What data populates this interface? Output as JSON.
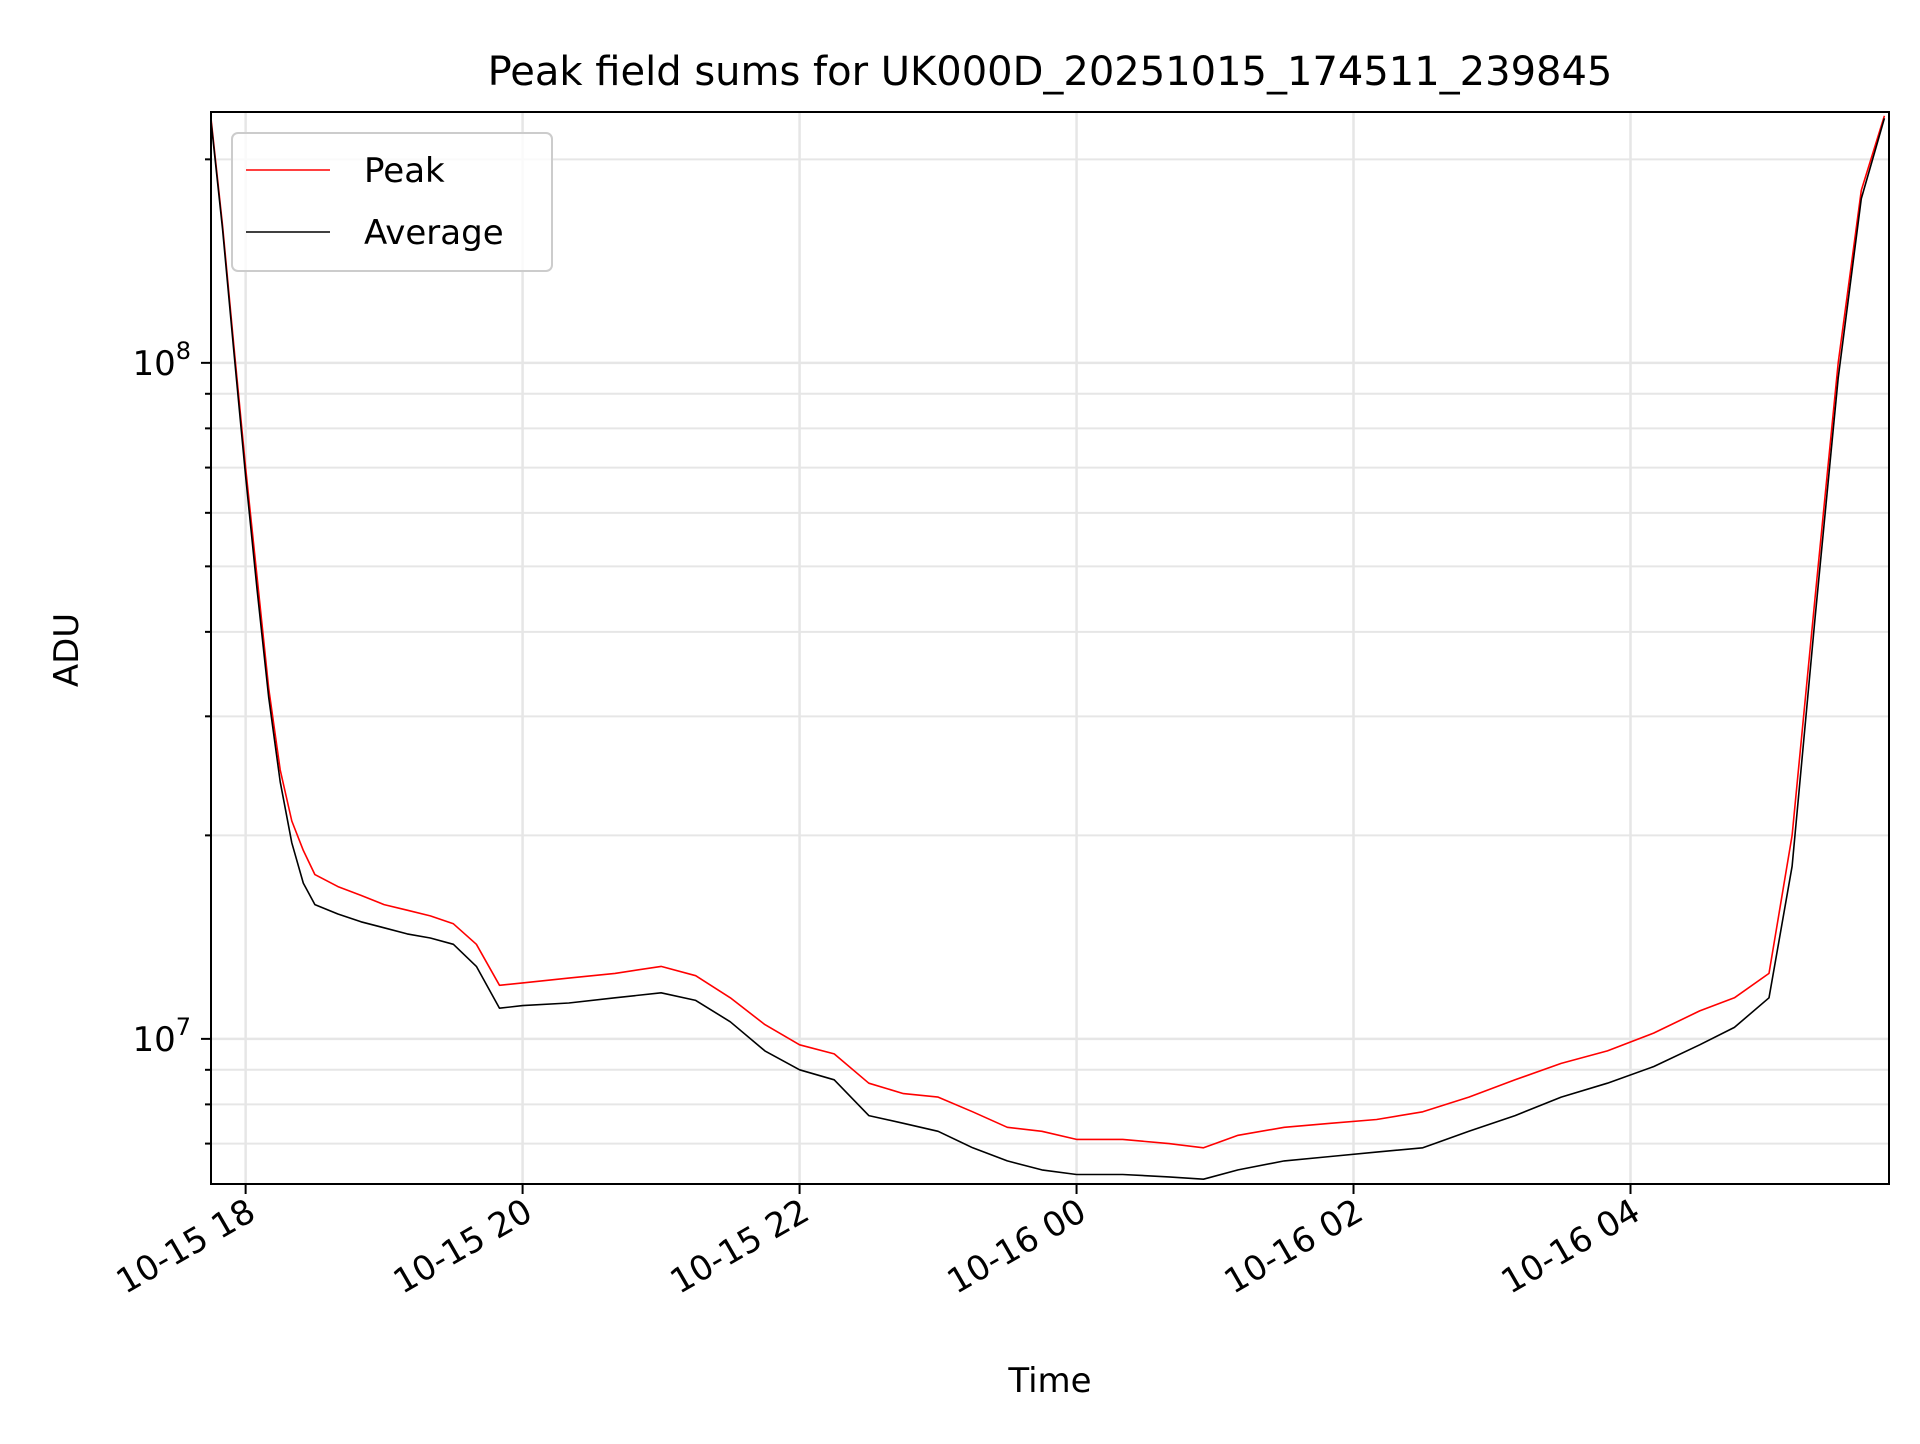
{
  "chart_data": {
    "type": "line",
    "title": "Peak field sums for UK000D_20251015_174511_239845",
    "xlabel": "Time",
    "ylabel": "ADU",
    "yscale": "log",
    "grid": true,
    "legend_position": "top-left",
    "xlim": [
      "2025-10-15 17:45",
      "2025-10-16 05:52"
    ],
    "ylim": [
      6100000,
      235000000
    ],
    "x_ticks": [
      {
        "value": "2025-10-15 18:00",
        "label": "10-15 18"
      },
      {
        "value": "2025-10-15 20:00",
        "label": "10-15 20"
      },
      {
        "value": "2025-10-15 22:00",
        "label": "10-15 22"
      },
      {
        "value": "2025-10-16 00:00",
        "label": "10-16 00"
      },
      {
        "value": "2025-10-16 02:00",
        "label": "10-16 02"
      },
      {
        "value": "2025-10-16 04:00",
        "label": "10-16 04"
      }
    ],
    "y_ticks": [
      {
        "value": 10000000,
        "base": "10",
        "exp": "7"
      },
      {
        "value": 100000000,
        "base": "10",
        "exp": "8"
      }
    ],
    "series": [
      {
        "name": "Peak",
        "color": "#ff0000",
        "x": [
          "2025-10-15 17:45",
          "2025-10-15 17:50",
          "2025-10-15 17:55",
          "2025-10-15 18:00",
          "2025-10-15 18:05",
          "2025-10-15 18:10",
          "2025-10-15 18:15",
          "2025-10-15 18:20",
          "2025-10-15 18:25",
          "2025-10-15 18:30",
          "2025-10-15 18:40",
          "2025-10-15 18:50",
          "2025-10-15 19:00",
          "2025-10-15 19:10",
          "2025-10-15 19:20",
          "2025-10-15 19:30",
          "2025-10-15 19:40",
          "2025-10-15 19:50",
          "2025-10-15 20:00",
          "2025-10-15 20:20",
          "2025-10-15 20:40",
          "2025-10-15 21:00",
          "2025-10-15 21:15",
          "2025-10-15 21:30",
          "2025-10-15 21:45",
          "2025-10-15 22:00",
          "2025-10-15 22:15",
          "2025-10-15 22:30",
          "2025-10-15 22:45",
          "2025-10-15 23:00",
          "2025-10-15 23:15",
          "2025-10-15 23:30",
          "2025-10-15 23:45",
          "2025-10-16 00:00",
          "2025-10-16 00:20",
          "2025-10-16 00:40",
          "2025-10-16 00:55",
          "2025-10-16 01:10",
          "2025-10-16 01:30",
          "2025-10-16 01:50",
          "2025-10-16 02:10",
          "2025-10-16 02:30",
          "2025-10-16 02:50",
          "2025-10-16 03:10",
          "2025-10-16 03:30",
          "2025-10-16 03:50",
          "2025-10-16 04:10",
          "2025-10-16 04:30",
          "2025-10-16 04:45",
          "2025-10-16 05:00",
          "2025-10-16 05:10",
          "2025-10-16 05:20",
          "2025-10-16 05:30",
          "2025-10-16 05:40",
          "2025-10-16 05:50"
        ],
        "values": [
          230000000,
          160000000,
          105000000,
          70000000,
          48000000,
          33000000,
          25000000,
          21000000,
          19000000,
          17500000,
          16800000,
          16300000,
          15800000,
          15500000,
          15200000,
          14800000,
          13800000,
          12000000,
          12100000,
          12300000,
          12500000,
          12800000,
          12400000,
          11500000,
          10500000,
          9800000,
          9500000,
          8600000,
          8300000,
          8200000,
          7800000,
          7400000,
          7300000,
          7100000,
          7100000,
          7000000,
          6900000,
          7200000,
          7400000,
          7500000,
          7600000,
          7800000,
          8200000,
          8700000,
          9200000,
          9600000,
          10200000,
          11000000,
          11500000,
          12500000,
          20000000,
          45000000,
          100000000,
          180000000,
          232000000
        ]
      },
      {
        "name": "Average",
        "color": "#000000",
        "x": [
          "2025-10-15 17:45",
          "2025-10-15 17:50",
          "2025-10-15 17:55",
          "2025-10-15 18:00",
          "2025-10-15 18:05",
          "2025-10-15 18:10",
          "2025-10-15 18:15",
          "2025-10-15 18:20",
          "2025-10-15 18:25",
          "2025-10-15 18:30",
          "2025-10-15 18:40",
          "2025-10-15 18:50",
          "2025-10-15 19:00",
          "2025-10-15 19:10",
          "2025-10-15 19:20",
          "2025-10-15 19:30",
          "2025-10-15 19:40",
          "2025-10-15 19:50",
          "2025-10-15 20:00",
          "2025-10-15 20:20",
          "2025-10-15 20:40",
          "2025-10-15 21:00",
          "2025-10-15 21:15",
          "2025-10-15 21:30",
          "2025-10-15 21:45",
          "2025-10-15 22:00",
          "2025-10-15 22:15",
          "2025-10-15 22:30",
          "2025-10-15 22:45",
          "2025-10-15 23:00",
          "2025-10-15 23:15",
          "2025-10-15 23:30",
          "2025-10-15 23:45",
          "2025-10-16 00:00",
          "2025-10-16 00:20",
          "2025-10-16 00:40",
          "2025-10-16 00:55",
          "2025-10-16 01:10",
          "2025-10-16 01:30",
          "2025-10-16 01:50",
          "2025-10-16 02:10",
          "2025-10-16 02:30",
          "2025-10-16 02:50",
          "2025-10-16 03:10",
          "2025-10-16 03:30",
          "2025-10-16 03:50",
          "2025-10-16 04:10",
          "2025-10-16 04:30",
          "2025-10-16 04:45",
          "2025-10-16 05:00",
          "2025-10-16 05:10",
          "2025-10-16 05:20",
          "2025-10-16 05:30",
          "2025-10-16 05:40",
          "2025-10-16 05:50"
        ],
        "values": [
          228000000,
          158000000,
          103000000,
          68000000,
          46000000,
          32000000,
          24000000,
          19500000,
          17000000,
          15800000,
          15300000,
          14900000,
          14600000,
          14300000,
          14100000,
          13800000,
          12800000,
          11100000,
          11200000,
          11300000,
          11500000,
          11700000,
          11400000,
          10600000,
          9600000,
          9000000,
          8700000,
          7700000,
          7500000,
          7300000,
          6900000,
          6600000,
          6400000,
          6300000,
          6300000,
          6250000,
          6200000,
          6400000,
          6600000,
          6700000,
          6800000,
          6900000,
          7300000,
          7700000,
          8200000,
          8600000,
          9100000,
          9800000,
          10400000,
          11500000,
          18000000,
          42000000,
          95000000,
          175000000,
          230000000
        ]
      }
    ]
  }
}
